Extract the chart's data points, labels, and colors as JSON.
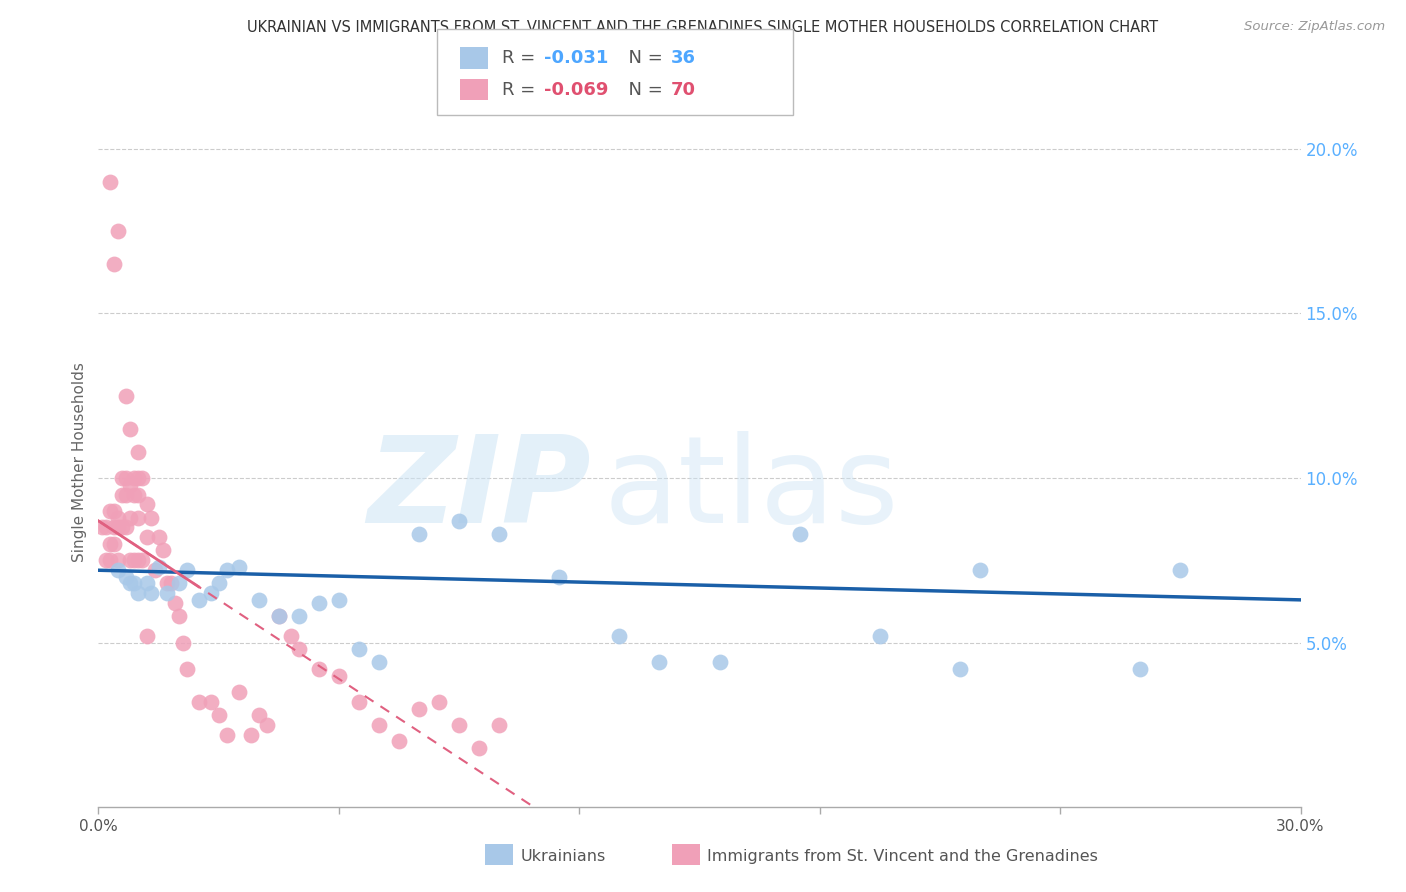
{
  "title": "UKRAINIAN VS IMMIGRANTS FROM ST. VINCENT AND THE GRENADINES SINGLE MOTHER HOUSEHOLDS CORRELATION CHART",
  "source": "Source: ZipAtlas.com",
  "ylabel": "Single Mother Households",
  "background_color": "#ffffff",
  "watermark_zip": "ZIP",
  "watermark_atlas": "atlas",
  "blue_R": -0.031,
  "blue_N": 36,
  "pink_R": -0.069,
  "pink_N": 70,
  "blue_color": "#a8c8e8",
  "pink_color": "#f0a0b8",
  "blue_line_color": "#1a5fa8",
  "pink_line_color": "#e06080",
  "blue_text_color": "#4da6ff",
  "pink_text_color": "#e05070",
  "right_axis_color": "#5ab0ff",
  "xlim": [
    0.0,
    0.3
  ],
  "ylim": [
    0.0,
    0.21
  ],
  "yticks": [
    0.05,
    0.1,
    0.15,
    0.2
  ],
  "ytick_labels": [
    "5.0%",
    "10.0%",
    "15.0%",
    "20.0%"
  ],
  "blue_x": [
    0.005,
    0.007,
    0.008,
    0.009,
    0.01,
    0.012,
    0.013,
    0.015,
    0.017,
    0.02,
    0.022,
    0.025,
    0.028,
    0.03,
    0.032,
    0.035,
    0.04,
    0.045,
    0.05,
    0.055,
    0.06,
    0.065,
    0.07,
    0.08,
    0.09,
    0.1,
    0.115,
    0.13,
    0.14,
    0.155,
    0.175,
    0.195,
    0.215,
    0.22,
    0.26,
    0.27
  ],
  "blue_y": [
    0.072,
    0.07,
    0.068,
    0.068,
    0.065,
    0.068,
    0.065,
    0.073,
    0.065,
    0.068,
    0.072,
    0.063,
    0.065,
    0.068,
    0.072,
    0.073,
    0.063,
    0.058,
    0.058,
    0.062,
    0.063,
    0.048,
    0.044,
    0.083,
    0.087,
    0.083,
    0.07,
    0.052,
    0.044,
    0.044,
    0.083,
    0.052,
    0.042,
    0.072,
    0.042,
    0.072
  ],
  "pink_x": [
    0.001,
    0.002,
    0.002,
    0.003,
    0.003,
    0.003,
    0.004,
    0.004,
    0.004,
    0.005,
    0.005,
    0.005,
    0.006,
    0.006,
    0.006,
    0.007,
    0.007,
    0.007,
    0.008,
    0.008,
    0.008,
    0.009,
    0.009,
    0.009,
    0.01,
    0.01,
    0.01,
    0.01,
    0.011,
    0.011,
    0.012,
    0.012,
    0.013,
    0.014,
    0.015,
    0.016,
    0.017,
    0.018,
    0.019,
    0.02,
    0.021,
    0.022,
    0.025,
    0.028,
    0.03,
    0.032,
    0.035,
    0.038,
    0.04,
    0.042,
    0.045,
    0.048,
    0.05,
    0.055,
    0.06,
    0.065,
    0.07,
    0.075,
    0.08,
    0.085,
    0.09,
    0.095,
    0.1,
    0.003,
    0.004,
    0.005,
    0.007,
    0.008,
    0.01,
    0.012
  ],
  "pink_y": [
    0.085,
    0.085,
    0.075,
    0.09,
    0.08,
    0.075,
    0.09,
    0.085,
    0.08,
    0.088,
    0.085,
    0.075,
    0.1,
    0.095,
    0.085,
    0.1,
    0.095,
    0.085,
    0.098,
    0.088,
    0.075,
    0.1,
    0.095,
    0.075,
    0.1,
    0.095,
    0.088,
    0.075,
    0.1,
    0.075,
    0.092,
    0.082,
    0.088,
    0.072,
    0.082,
    0.078,
    0.068,
    0.068,
    0.062,
    0.058,
    0.05,
    0.042,
    0.032,
    0.032,
    0.028,
    0.022,
    0.035,
    0.022,
    0.028,
    0.025,
    0.058,
    0.052,
    0.048,
    0.042,
    0.04,
    0.032,
    0.025,
    0.02,
    0.03,
    0.032,
    0.025,
    0.018,
    0.025,
    0.19,
    0.165,
    0.175,
    0.125,
    0.115,
    0.108,
    0.052
  ]
}
